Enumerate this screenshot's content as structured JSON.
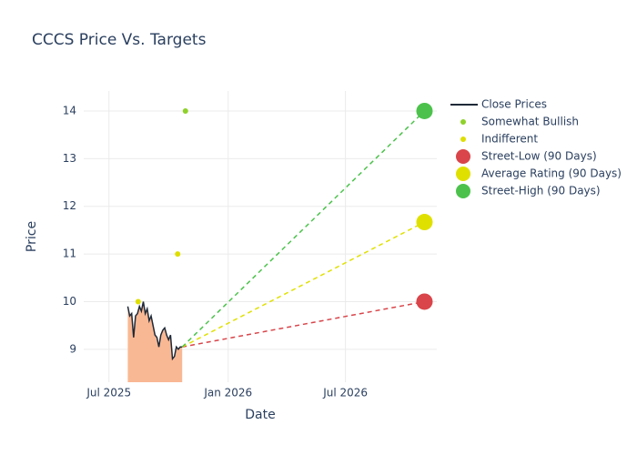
{
  "chart_data": {
    "type": "line",
    "title": "CCCS Price Vs. Targets",
    "x_label": "Date",
    "y_label": "Price",
    "xlim": [
      "2025-05-23",
      "2026-11-19"
    ],
    "xticks": [
      {
        "value": "2025-07-01",
        "label": "Jul 2025"
      },
      {
        "value": "2026-01-01",
        "label": "Jan 2026"
      },
      {
        "value": "2026-07-01",
        "label": "Jul 2026"
      }
    ],
    "ylim": [
      8.31,
      14.42
    ],
    "yticks": [
      9,
      10,
      11,
      12,
      13,
      14
    ],
    "grid": true,
    "series": [
      {
        "name": "Close Prices",
        "kind": "area-line",
        "color": "#1f2937",
        "fill": "#f9b894",
        "x": [
          "2025-07-30",
          "2025-08-02",
          "2025-08-05",
          "2025-08-08",
          "2025-08-11",
          "2025-08-14",
          "2025-08-17",
          "2025-08-20",
          "2025-08-23",
          "2025-08-26",
          "2025-08-29",
          "2025-09-01",
          "2025-09-04",
          "2025-09-07",
          "2025-09-10",
          "2025-09-13",
          "2025-09-16",
          "2025-09-19",
          "2025-09-22",
          "2025-09-25",
          "2025-09-28",
          "2025-10-01",
          "2025-10-04",
          "2025-10-07",
          "2025-10-10",
          "2025-10-13",
          "2025-10-16",
          "2025-10-19",
          "2025-10-22"
        ],
        "values": [
          9.9,
          9.7,
          9.75,
          9.25,
          9.7,
          9.75,
          9.9,
          9.8,
          10.0,
          9.75,
          9.85,
          9.6,
          9.7,
          9.5,
          9.3,
          9.25,
          9.05,
          9.3,
          9.4,
          9.45,
          9.3,
          9.2,
          9.3,
          8.8,
          8.85,
          9.05,
          9.0,
          9.05,
          9.05
        ]
      },
      {
        "name": "Somewhat Bullish",
        "kind": "points",
        "color": "#8fd12a",
        "x": [
          "2025-10-27"
        ],
        "values": [
          14
        ]
      },
      {
        "name": "Indifferent",
        "kind": "points",
        "color": "#dede00",
        "x": [
          "2025-08-15",
          "2025-10-15"
        ],
        "values": [
          10,
          11
        ]
      },
      {
        "name": "Street-Low (90 Days)",
        "kind": "target",
        "color": "#d9454a",
        "x": [
          "2025-10-22",
          "2026-10-31"
        ],
        "values": [
          9.05,
          10
        ]
      },
      {
        "name": "Average Rating (90 Days)",
        "kind": "target",
        "color": "#e0e000",
        "x": [
          "2025-10-22",
          "2026-10-31"
        ],
        "values": [
          9.05,
          11.67
        ]
      },
      {
        "name": "Street-High (90 Days)",
        "kind": "target",
        "color": "#4cc24c",
        "x": [
          "2025-10-22",
          "2026-10-31"
        ],
        "values": [
          9.05,
          14
        ]
      }
    ]
  }
}
